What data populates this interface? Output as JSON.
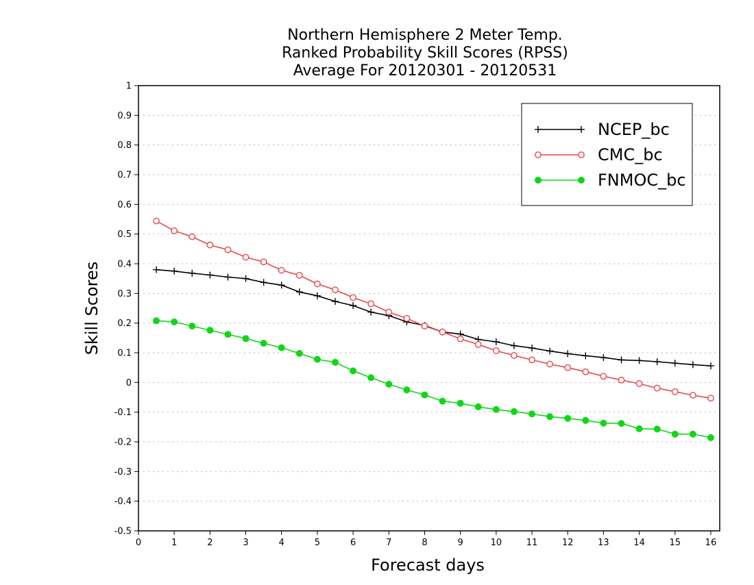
{
  "chart_data": {
    "type": "line",
    "title_lines": [
      "Northern Hemisphere 2 Meter Temp.",
      "Ranked Probability Skill Scores (RPSS)",
      "Average For 20120301 - 20120531"
    ],
    "xlabel": "Forecast days",
    "ylabel": "Skill Scores",
    "xlim": [
      0,
      16.25
    ],
    "ylim": [
      -0.5,
      1
    ],
    "x_ticks": [
      0,
      1,
      2,
      3,
      4,
      5,
      6,
      7,
      8,
      9,
      10,
      11,
      12,
      13,
      14,
      15,
      16
    ],
    "y_ticks": [
      -0.5,
      -0.4,
      -0.3,
      -0.2,
      -0.1,
      0,
      0.1,
      0.2,
      0.3,
      0.4,
      0.5,
      0.6,
      0.7,
      0.8,
      0.9,
      1
    ],
    "y_tick_labels": [
      "-0.5",
      "-0.4",
      "-0.3",
      "-0.2",
      "-0.1",
      "0",
      "0.1",
      "0.2",
      "0.3",
      "0.4",
      "0.5",
      "0.6",
      "0.7",
      "0.8",
      "0.9",
      "1"
    ],
    "grid": "horizontal dotted",
    "legend_position": "top-right",
    "x": [
      0.5,
      1.0,
      1.5,
      2.0,
      2.5,
      3.0,
      3.5,
      4.0,
      4.5,
      5.0,
      5.5,
      6.0,
      6.5,
      7.0,
      7.5,
      8.0,
      8.5,
      9.0,
      9.5,
      10.0,
      10.5,
      11.0,
      11.5,
      12.0,
      12.5,
      13.0,
      13.5,
      14.0,
      14.5,
      15.0,
      15.5,
      16.0
    ],
    "series": [
      {
        "name": "NCEP_bc",
        "color": "#000000",
        "marker": "plus",
        "values": [
          0.38,
          0.375,
          0.368,
          0.362,
          0.355,
          0.35,
          0.337,
          0.328,
          0.305,
          0.292,
          0.273,
          0.259,
          0.237,
          0.225,
          0.204,
          0.192,
          0.17,
          0.163,
          0.145,
          0.137,
          0.124,
          0.116,
          0.106,
          0.097,
          0.09,
          0.084,
          0.076,
          0.074,
          0.07,
          0.065,
          0.06,
          0.056
        ]
      },
      {
        "name": "CMC_bc",
        "color": "#e8474c",
        "marker": "open-circle",
        "values": [
          0.544,
          0.511,
          0.491,
          0.463,
          0.447,
          0.422,
          0.406,
          0.378,
          0.361,
          0.332,
          0.312,
          0.286,
          0.265,
          0.237,
          0.216,
          0.19,
          0.17,
          0.147,
          0.128,
          0.107,
          0.091,
          0.076,
          0.062,
          0.05,
          0.036,
          0.021,
          0.008,
          -0.004,
          -0.019,
          -0.031,
          -0.043,
          -0.053
        ]
      },
      {
        "name": "FNMOC_bc",
        "color": "#11d618",
        "marker": "filled-circle",
        "values": [
          0.208,
          0.204,
          0.19,
          0.176,
          0.162,
          0.148,
          0.132,
          0.117,
          0.098,
          0.078,
          0.068,
          0.039,
          0.016,
          -0.006,
          -0.025,
          -0.042,
          -0.063,
          -0.07,
          -0.082,
          -0.091,
          -0.098,
          -0.106,
          -0.115,
          -0.121,
          -0.128,
          -0.137,
          -0.138,
          -0.156,
          -0.157,
          -0.174,
          -0.174,
          -0.186
        ]
      }
    ]
  }
}
